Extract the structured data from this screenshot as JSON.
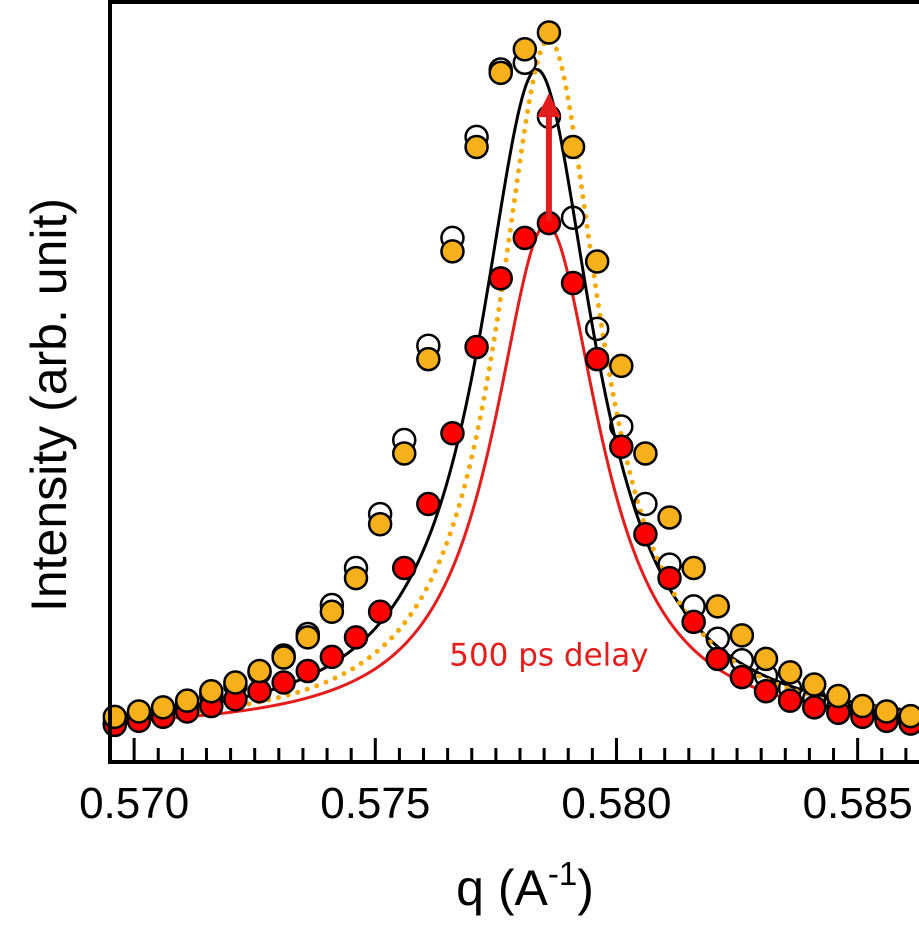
{
  "chart_data": {
    "type": "scatter",
    "title": "",
    "xlabel": "q (A",
    "xlabel_superscript": "-1",
    "xlabel_close": ")",
    "ylabel": "Intensity (arb. unit)",
    "xlim": [
      0.5695,
      0.5865
    ],
    "ylim": [
      0,
      1.06
    ],
    "x_ticks": [
      0.57,
      0.575,
      0.58,
      0.585
    ],
    "x_tick_labels": [
      "0.570",
      "0.575",
      "0.580",
      "0.585"
    ],
    "x_minor_step": 0.0005,
    "y_ticks_labeled": false,
    "grid": false,
    "annotation": {
      "text": "500 ps delay",
      "color": "#e51c1c",
      "x": 0.5786,
      "y": 0.1
    },
    "arrow": {
      "x": 0.5786,
      "y_from": 0.76,
      "y_to": 0.95,
      "color": "#e51c1c"
    },
    "series": [
      {
        "marker": "open-circle",
        "color": "#000000",
        "x": [
          0.5696,
          0.5701,
          0.5706,
          0.5711,
          0.5716,
          0.5721,
          0.5726,
          0.5731,
          0.5736,
          0.5741,
          0.5746,
          0.5751,
          0.5756,
          0.5761,
          0.5766,
          0.5771,
          0.5776,
          0.5781,
          0.5786,
          0.5791,
          0.5796,
          0.5801,
          0.5806,
          0.5811,
          0.5816,
          0.5821,
          0.5826,
          0.5831,
          0.5836,
          0.5841,
          0.5846,
          0.5851,
          0.5856,
          0.5861
        ],
        "y": [
          0.015,
          0.022,
          0.03,
          0.042,
          0.055,
          0.07,
          0.09,
          0.115,
          0.147,
          0.19,
          0.245,
          0.325,
          0.435,
          0.575,
          0.735,
          0.885,
          0.985,
          0.995,
          0.915,
          0.765,
          0.6,
          0.455,
          0.34,
          0.25,
          0.188,
          0.14,
          0.108,
          0.085,
          0.066,
          0.051,
          0.039,
          0.03,
          0.022,
          0.016
        ]
      },
      {
        "marker": "filled-circle",
        "color": "#ff0000",
        "x": [
          0.5696,
          0.5701,
          0.5706,
          0.5711,
          0.5716,
          0.5721,
          0.5726,
          0.5731,
          0.5736,
          0.5741,
          0.5746,
          0.5751,
          0.5756,
          0.5761,
          0.5766,
          0.5771,
          0.5776,
          0.5781,
          0.5786,
          0.5791,
          0.5796,
          0.5801,
          0.5806,
          0.5811,
          0.5816,
          0.5821,
          0.5826,
          0.5831,
          0.5836,
          0.5841,
          0.5846,
          0.5851,
          0.5856,
          0.5861
        ],
        "y": [
          0.012,
          0.018,
          0.024,
          0.032,
          0.04,
          0.05,
          0.062,
          0.075,
          0.092,
          0.113,
          0.142,
          0.18,
          0.245,
          0.34,
          0.445,
          0.573,
          0.675,
          0.735,
          0.757,
          0.668,
          0.555,
          0.425,
          0.295,
          0.23,
          0.165,
          0.11,
          0.083,
          0.062,
          0.048,
          0.038,
          0.03,
          0.024,
          0.018,
          0.014
        ]
      },
      {
        "marker": "filled-circle",
        "color": "#f5b01a",
        "x": [
          0.5696,
          0.5701,
          0.5706,
          0.5711,
          0.5716,
          0.5721,
          0.5726,
          0.5731,
          0.5736,
          0.5741,
          0.5746,
          0.5751,
          0.5756,
          0.5761,
          0.5766,
          0.5771,
          0.5776,
          0.5781,
          0.5786,
          0.5791,
          0.5796,
          0.5801,
          0.5806,
          0.5811,
          0.5816,
          0.5821,
          0.5826,
          0.5831,
          0.5836,
          0.5841,
          0.5846,
          0.5851,
          0.5856,
          0.5861
        ],
        "y": [
          0.024,
          0.032,
          0.038,
          0.048,
          0.062,
          0.075,
          0.092,
          0.112,
          0.142,
          0.18,
          0.23,
          0.31,
          0.415,
          0.555,
          0.715,
          0.87,
          0.98,
          1.015,
          1.04,
          0.87,
          0.7,
          0.545,
          0.415,
          0.32,
          0.245,
          0.188,
          0.145,
          0.11,
          0.09,
          0.072,
          0.055,
          0.04,
          0.032,
          0.025
        ]
      }
    ],
    "fits": [
      {
        "style": "solid",
        "color": "#000000",
        "center": 0.57835,
        "hwhm": 0.00145,
        "amplitude": 0.985,
        "baseline": 0.0
      },
      {
        "style": "solid",
        "color": "#e51c1c",
        "center": 0.57855,
        "hwhm": 0.00135,
        "amplitude": 0.755,
        "baseline": 0.0
      },
      {
        "style": "dotted",
        "color": "#f5a800",
        "center": 0.5786,
        "hwhm": 0.0013,
        "amplitude": 1.03,
        "baseline": 0.0
      }
    ]
  }
}
